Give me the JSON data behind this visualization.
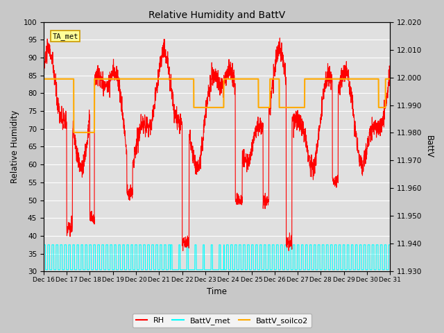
{
  "title": "Relative Humidity and BattV",
  "ylabel_left": "Relative Humidity",
  "ylabel_right": "BattV",
  "xlabel": "Time",
  "annotation_text": "TA_met",
  "ylim_left": [
    30,
    100
  ],
  "ylim_right": [
    11.93,
    12.02
  ],
  "fig_bg_color": "#c8c8c8",
  "plot_bg_color": "#e0e0e0",
  "rh_color": "#ff0000",
  "battv_met_color": "#00ffff",
  "battv_soilco2_color": "#ffaa00",
  "rh_linewidth": 0.8,
  "battv_met_linewidth": 0.8,
  "battv_soilco2_linewidth": 1.5,
  "xtick_labels": [
    "Dec 16",
    "Dec 17",
    "Dec 18",
    "Dec 19",
    "Dec 20",
    "Dec 21",
    "Dec 22",
    "Dec 23",
    "Dec 24",
    "Dec 25",
    "Dec 26",
    "Dec 27",
    "Dec 28",
    "Dec 29",
    "Dec 30",
    "Dec 31"
  ],
  "yticks_left": [
    30,
    35,
    40,
    45,
    50,
    55,
    60,
    65,
    70,
    75,
    80,
    85,
    90,
    95,
    100
  ],
  "yticks_right": [
    11.93,
    11.94,
    11.95,
    11.96,
    11.97,
    11.98,
    11.99,
    12.0,
    12.01,
    12.02
  ],
  "legend_labels": [
    "RH",
    "BattV_met",
    "BattV_soilco2"
  ],
  "n_days": 15,
  "n_points": 2160
}
